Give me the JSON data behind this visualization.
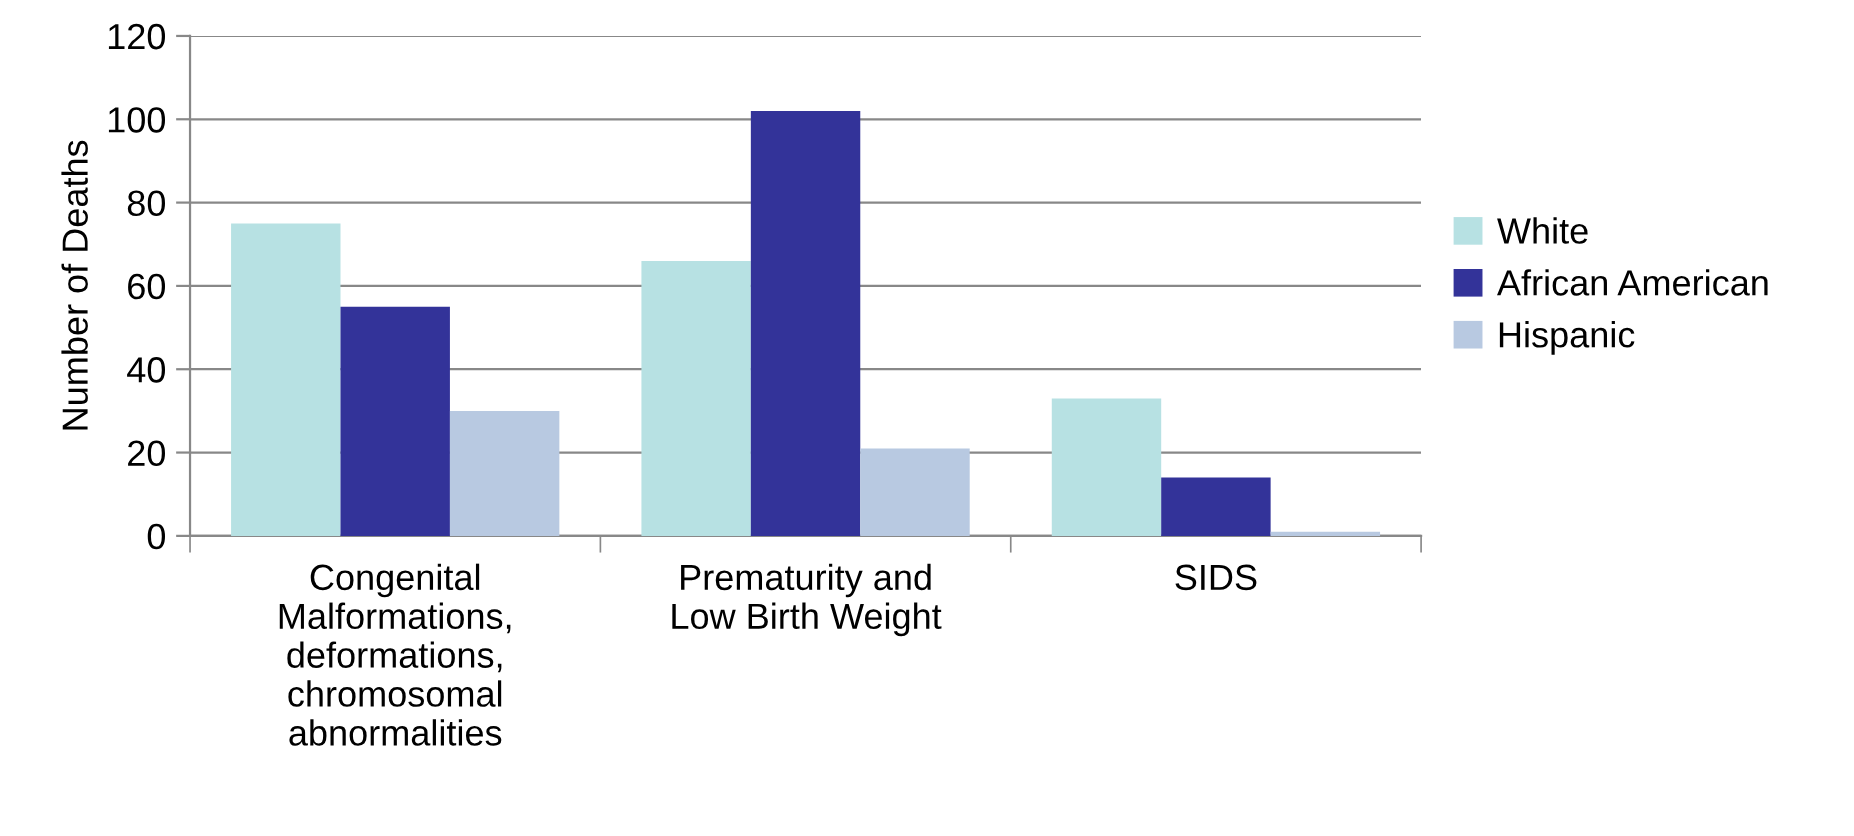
{
  "chart_data": {
    "type": "bar",
    "ylabel": "Number of Deaths",
    "categories": [
      "Congenital\nMalformations,\ndeformations,\nchromosomal\nabnormalities",
      "Prematurity and\nLow Birth Weight",
      "SIDS"
    ],
    "series": [
      {
        "name": "White",
        "color": "#b7e1e3",
        "values": [
          75,
          66,
          33
        ]
      },
      {
        "name": "African American",
        "color": "#333399",
        "values": [
          55,
          102,
          14
        ]
      },
      {
        "name": "Hispanic",
        "color": "#b8c9e1",
        "values": [
          30,
          21,
          1
        ]
      }
    ],
    "ylim": [
      0,
      120
    ],
    "yticks": [
      0,
      20,
      40,
      60,
      80,
      100,
      120
    ],
    "grid": "y",
    "legend": "right"
  }
}
